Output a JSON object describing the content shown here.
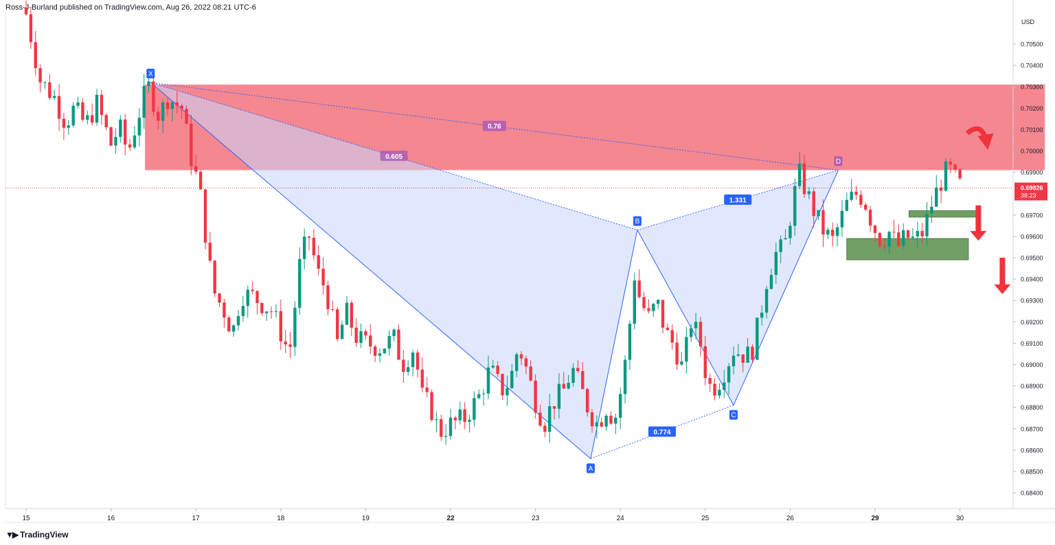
{
  "header": {
    "publisher_line": "Ross-J-Burland published on TradingView.com, Aug 26, 2022 08:21 UTC-6"
  },
  "footer": {
    "logo_text": "TradingView",
    "logo_icon": "tradingview-logo-icon"
  },
  "colors": {
    "bull": "#089981",
    "bear": "#f23645",
    "pattern_line": "#2962ff",
    "pattern_fill": "#c9d5fb",
    "supply_zone": "#f47a84",
    "demand_zone": "#6a9a5e",
    "arrow": "#f0323c",
    "price_tag": "#f23645",
    "ratio_purple": "#a655b5"
  },
  "chart_data": {
    "type": "candlestick",
    "symbol_currency": "USD",
    "current_price": "0.69826",
    "countdown": "38:23",
    "ylim": [
      0.6833,
      0.7068
    ],
    "y_ticks": [
      "0.70500",
      "0.70400",
      "0.70300",
      "0.70200",
      "0.70100",
      "0.70000",
      "0.69900",
      "0.69700",
      "0.69600",
      "0.69500",
      "0.69400",
      "0.69300",
      "0.69200",
      "0.69100",
      "0.69000",
      "0.68900",
      "0.68800",
      "0.68700",
      "0.68600",
      "0.68500",
      "0.68400"
    ],
    "x_ticks": [
      "15",
      "16",
      "17",
      "18",
      "19",
      "22",
      "23",
      "24",
      "25",
      "26",
      "29",
      "30"
    ],
    "grid": false,
    "close_path": [
      [
        0.0,
        0.7064
      ],
      [
        0.5,
        0.7033
      ],
      [
        1.0,
        0.7025
      ],
      [
        1.4,
        0.7013
      ],
      [
        1.7,
        0.702
      ],
      [
        2.1,
        0.7012
      ],
      [
        2.5,
        0.7022
      ],
      [
        3.0,
        0.7003
      ],
      [
        3.3,
        0.7011
      ],
      [
        3.6,
        0.6999
      ],
      [
        4.0,
        0.7018
      ],
      [
        4.3,
        0.7031
      ],
      [
        4.7,
        0.7016
      ],
      [
        5.0,
        0.7025
      ],
      [
        5.5,
        0.702
      ],
      [
        5.9,
        0.6992
      ],
      [
        6.1,
        0.6985
      ],
      [
        6.4,
        0.6955
      ],
      [
        6.6,
        0.6935
      ],
      [
        7.0,
        0.6925
      ],
      [
        7.3,
        0.6915
      ],
      [
        7.6,
        0.6933
      ],
      [
        8.0,
        0.6932
      ],
      [
        8.4,
        0.6928
      ],
      [
        8.7,
        0.6925
      ],
      [
        9.0,
        0.6915
      ],
      [
        9.3,
        0.6905
      ],
      [
        9.7,
        0.695
      ],
      [
        10.0,
        0.696
      ],
      [
        10.3,
        0.6943
      ],
      [
        10.6,
        0.6935
      ],
      [
        11.0,
        0.691
      ],
      [
        11.3,
        0.6925
      ],
      [
        11.7,
        0.6912
      ],
      [
        12.0,
        0.691
      ],
      [
        12.5,
        0.6908
      ],
      [
        13.0,
        0.6912
      ],
      [
        13.3,
        0.69
      ],
      [
        13.7,
        0.6908
      ],
      [
        14.0,
        0.6885
      ],
      [
        14.3,
        0.688
      ],
      [
        14.6,
        0.6868
      ],
      [
        15.0,
        0.6872
      ],
      [
        15.5,
        0.6875
      ],
      [
        16.0,
        0.6885
      ],
      [
        16.4,
        0.6898
      ],
      [
        16.8,
        0.6888
      ],
      [
        17.1,
        0.6892
      ],
      [
        17.4,
        0.6909
      ],
      [
        17.7,
        0.6897
      ],
      [
        18.0,
        0.6883
      ],
      [
        18.3,
        0.6872
      ],
      [
        18.6,
        0.6882
      ],
      [
        19.0,
        0.6888
      ],
      [
        19.3,
        0.6898
      ],
      [
        19.6,
        0.6889
      ],
      [
        19.9,
        0.6878
      ],
      [
        20.2,
        0.6872
      ],
      [
        20.5,
        0.688
      ],
      [
        20.8,
        0.6874
      ],
      [
        21.1,
        0.6893
      ],
      [
        21.3,
        0.6915
      ],
      [
        21.5,
        0.6942
      ],
      [
        21.7,
        0.693
      ],
      [
        22.0,
        0.6922
      ],
      [
        22.3,
        0.6929
      ],
      [
        22.6,
        0.6915
      ],
      [
        22.9,
        0.6909
      ],
      [
        23.2,
        0.6898
      ],
      [
        23.5,
        0.692
      ],
      [
        23.8,
        0.6912
      ],
      [
        24.1,
        0.689
      ],
      [
        24.4,
        0.689
      ],
      [
        24.7,
        0.6898
      ],
      [
        25.0,
        0.6907
      ],
      [
        25.3,
        0.6905
      ],
      [
        25.6,
        0.6904
      ],
      [
        25.9,
        0.692
      ],
      [
        26.2,
        0.6942
      ],
      [
        26.5,
        0.6952
      ],
      [
        26.8,
        0.6955
      ],
      [
        27.1,
        0.6976
      ],
      [
        27.3,
        0.699
      ],
      [
        27.6,
        0.698
      ],
      [
        27.9,
        0.697
      ],
      [
        28.2,
        0.6962
      ],
      [
        28.5,
        0.6958
      ],
      [
        28.8,
        0.6968
      ],
      [
        29.0,
        0.6975
      ],
      [
        29.3,
        0.698
      ],
      [
        29.6,
        0.6978
      ],
      [
        29.9,
        0.6966
      ],
      [
        30.2,
        0.6958
      ],
      [
        30.5,
        0.6962
      ],
      [
        30.8,
        0.6955
      ],
      [
        31.1,
        0.696
      ],
      [
        31.4,
        0.6958
      ],
      [
        31.7,
        0.6962
      ],
      [
        32.0,
        0.6975
      ],
      [
        32.3,
        0.6985
      ],
      [
        32.6,
        0.6992
      ],
      [
        32.9,
        0.6985
      ],
      [
        33.1,
        0.69826
      ]
    ],
    "pattern": {
      "name": "XABCD",
      "points": [
        {
          "label": "X",
          "x_day": 4.4,
          "y": 0.7032
        },
        {
          "label": "A",
          "x_day": 19.95,
          "y": 0.6856
        },
        {
          "label": "B",
          "x_day": 21.6,
          "y": 0.6963
        },
        {
          "label": "C",
          "x_day": 25.0,
          "y": 0.6881
        },
        {
          "label": "D",
          "x_day": 28.7,
          "y": 0.6991
        }
      ],
      "ratios": [
        "0.605",
        "0.774",
        "1.331",
        "0.76"
      ]
    },
    "zones": [
      {
        "type": "supply",
        "y_top": 0.7031,
        "y_bottom": 0.6991,
        "x_start_day": 4.2,
        "x_end_day": 36.0
      },
      {
        "type": "demand",
        "y_top": 0.6972,
        "y_bottom": 0.6969,
        "x_start_day": 31.2,
        "x_end_day": 33.6
      },
      {
        "type": "demand",
        "y_top": 0.6959,
        "y_bottom": 0.6949,
        "x_start_day": 29.0,
        "x_end_day": 33.3
      }
    ],
    "annotations": [
      "curved-arrow-down",
      "arrow-down",
      "arrow-down"
    ]
  }
}
